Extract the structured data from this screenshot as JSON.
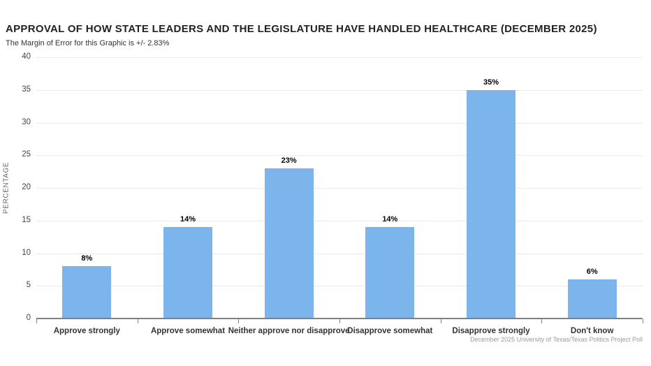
{
  "header": {
    "title": "APPROVAL OF HOW STATE LEADERS AND THE LEGISLATURE HAVE HANDLED HEALTHCARE (DECEMBER 2025)",
    "subtitle": "The Margin of Error for this Graphic is +/- 2.83%"
  },
  "chart_data": {
    "type": "bar",
    "title": "APPROVAL OF HOW STATE LEADERS AND THE LEGISLATURE HAVE HANDLED HEALTHCARE (DECEMBER 2025)",
    "subtitle": "The Margin of Error for this Graphic is +/- 2.83%",
    "categories": [
      "Approve strongly",
      "Approve somewhat",
      "Neither approve nor disapprove",
      "Disapprove somewhat",
      "Disapprove strongly",
      "Don't know"
    ],
    "values": [
      8,
      14,
      23,
      14,
      35,
      6
    ],
    "data_labels": [
      "8%",
      "14%",
      "23%",
      "14%",
      "35%",
      "6%"
    ],
    "xlabel": "",
    "ylabel": "PERCENTAGE",
    "ylim": [
      0,
      40
    ],
    "ytick_interval": 5,
    "yticks": [
      0,
      5,
      10,
      15,
      20,
      25,
      30,
      35,
      40
    ],
    "grid": true,
    "legend": "none",
    "bar_color": "#7cb5ec",
    "credits": "December 2025 University of Texas/Texas Politics Project Poll"
  },
  "colors": {
    "bar": "#7cb5ec",
    "gridline": "#e9e9e9",
    "axis_line": "#808080",
    "title_text": "#222222",
    "credits_text": "#9a9a9a"
  }
}
